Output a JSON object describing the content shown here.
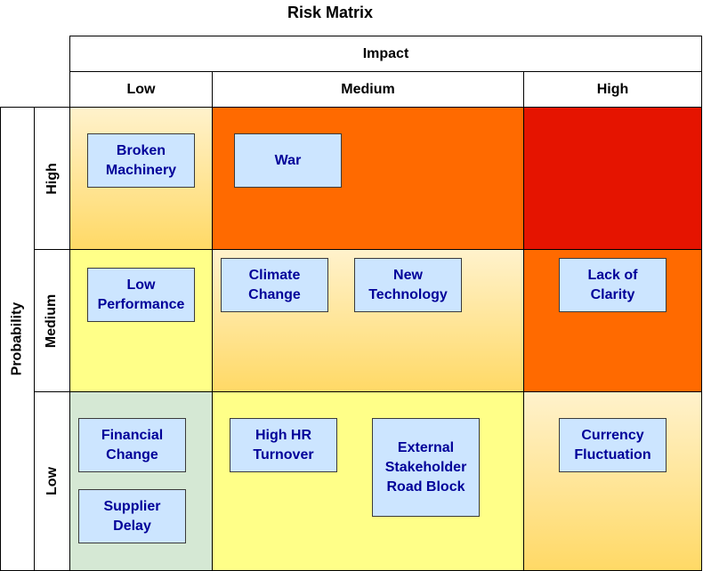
{
  "title": "Risk Matrix",
  "impact": {
    "label": "Impact",
    "levels": [
      "Low",
      "Medium",
      "High"
    ]
  },
  "probability": {
    "label": "Probability",
    "levels": [
      "High",
      "Medium",
      "Low"
    ]
  },
  "colors": {
    "high_risk": "#e51400",
    "elevated_risk": "#ff6a00",
    "moderate_risk": "#ffd966",
    "low_risk": "#ffff88",
    "minimal_risk": "#d5e8d4",
    "risk_box_fill": "#cce5ff",
    "risk_box_text": "#000099"
  },
  "risks": {
    "broken_machinery": "Broken\nMachinery",
    "war": "War",
    "low_performance": "Low\nPerformance",
    "climate_change": "Climate\nChange",
    "new_technology": "New\nTechnology",
    "lack_of_clarity": "Lack of\nClarity",
    "financial_change": "Financial\nChange",
    "supplier_delay": "Supplier\nDelay",
    "high_hr_turnover": "High HR\nTurnover",
    "external_stakeholder": "External\nStakeholder\nRoad Block",
    "currency_fluctuation": "Currency\nFluctuation"
  }
}
